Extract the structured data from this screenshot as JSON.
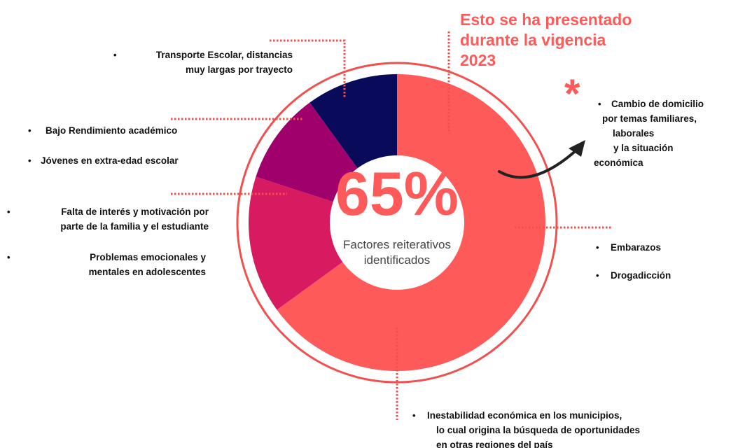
{
  "chart_data": {
    "type": "donut",
    "values": [
      65,
      15,
      10,
      10
    ],
    "value_labels": [
      "65%",
      null,
      null,
      null
    ],
    "colors": [
      "#ff5a5a",
      "#d81b60",
      "#a0006c",
      "#0a0a5a"
    ],
    "center_text": "Factores reiterativos identificados",
    "header": [
      "Esto se ha presentado",
      "durante la vigencia",
      "2023"
    ],
    "marker": "*",
    "annotations": [
      [
        "Transporte Escolar, distancias",
        "muy largas por trayecto"
      ],
      [
        "Bajo Rendimiento académico"
      ],
      [
        "Jóvenes en extra-edad escolar"
      ],
      [
        "Falta de interés y motivación por",
        "parte de la familia y el estudiante"
      ],
      [
        "Problemas emocionales y",
        "mentales en adolescentes"
      ],
      [
        "Cambio de domicilio",
        "por temas familiares,",
        "laborales",
        "y la situación",
        "económica"
      ],
      [
        "Embarazos"
      ],
      [
        "Drogadicción"
      ],
      [
        "Inestabilidad económica en los municipios,",
        "lo cual origina la búsqueda de oportunidades",
        "en otras regiones del país"
      ]
    ]
  }
}
